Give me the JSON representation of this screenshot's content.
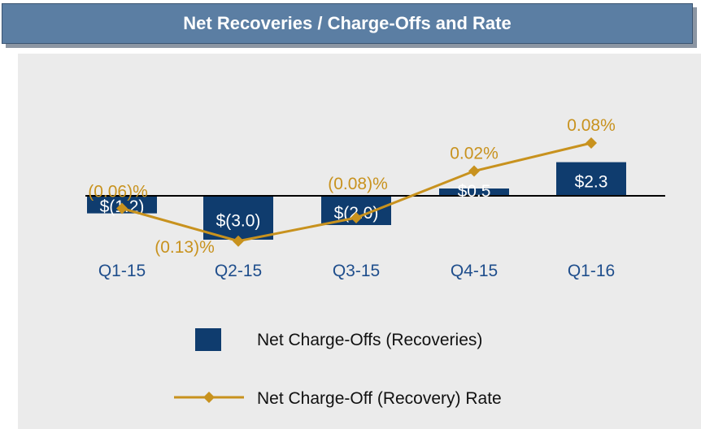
{
  "header": {
    "title": "Net Recoveries / Charge-Offs and Rate"
  },
  "colors": {
    "bar": "#0f3c6e",
    "line": "#c8921e",
    "axis": "#000000",
    "panel": "#ebebeb"
  },
  "chart_data": {
    "type": "bar",
    "title": "Net Recoveries / Charge-Offs and Rate",
    "categories": [
      "Q1-15",
      "Q2-15",
      "Q3-15",
      "Q4-15",
      "Q1-16"
    ],
    "series": [
      {
        "name": "Net Charge-Offs (Recoveries)",
        "type": "bar",
        "values": [
          -1.2,
          -3.0,
          -2.0,
          0.5,
          2.3
        ],
        "labels": [
          "$(1.2)",
          "$(3.0)",
          "$(2.0)",
          "$0.5",
          "$2.3"
        ]
      },
      {
        "name": "Net Charge-Off (Recovery) Rate",
        "type": "line",
        "values": [
          -0.06,
          -0.13,
          -0.08,
          0.02,
          0.08
        ],
        "labels": [
          "(0.06)%",
          "(0.13)%",
          "(0.08)%",
          "0.02%",
          "0.08%"
        ]
      }
    ],
    "legend": {
      "position": "bottom",
      "items": [
        "Net Charge-Offs (Recoveries)",
        "Net Charge-Off (Recovery) Rate"
      ]
    },
    "grid": false
  }
}
